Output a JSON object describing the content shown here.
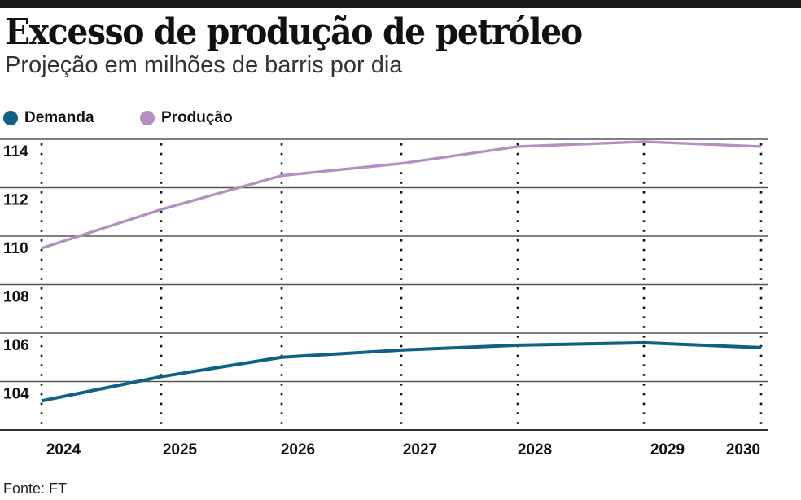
{
  "chart_data": {
    "type": "line",
    "title": "Excesso de produção de petróleo",
    "subtitle": "Projeção em milhões de barris por dia",
    "source": "Fonte: FT",
    "x": [
      "2024",
      "2025",
      "2026",
      "2027",
      "2028",
      "2029",
      "2030"
    ],
    "yticks": [
      104,
      106,
      108,
      110,
      112,
      114
    ],
    "ylim": [
      102,
      114
    ],
    "grid": "horizontal solid, vertical dotted",
    "legend_position": "top-left",
    "series": [
      {
        "name": "Demanda",
        "color": "#0e6183",
        "values": [
          103.2,
          104.2,
          105.0,
          105.3,
          105.5,
          105.6,
          105.4
        ]
      },
      {
        "name": "Produção",
        "color": "#b48fc2",
        "values": [
          109.5,
          111.1,
          112.5,
          113.0,
          113.7,
          113.9,
          113.7
        ]
      }
    ]
  }
}
